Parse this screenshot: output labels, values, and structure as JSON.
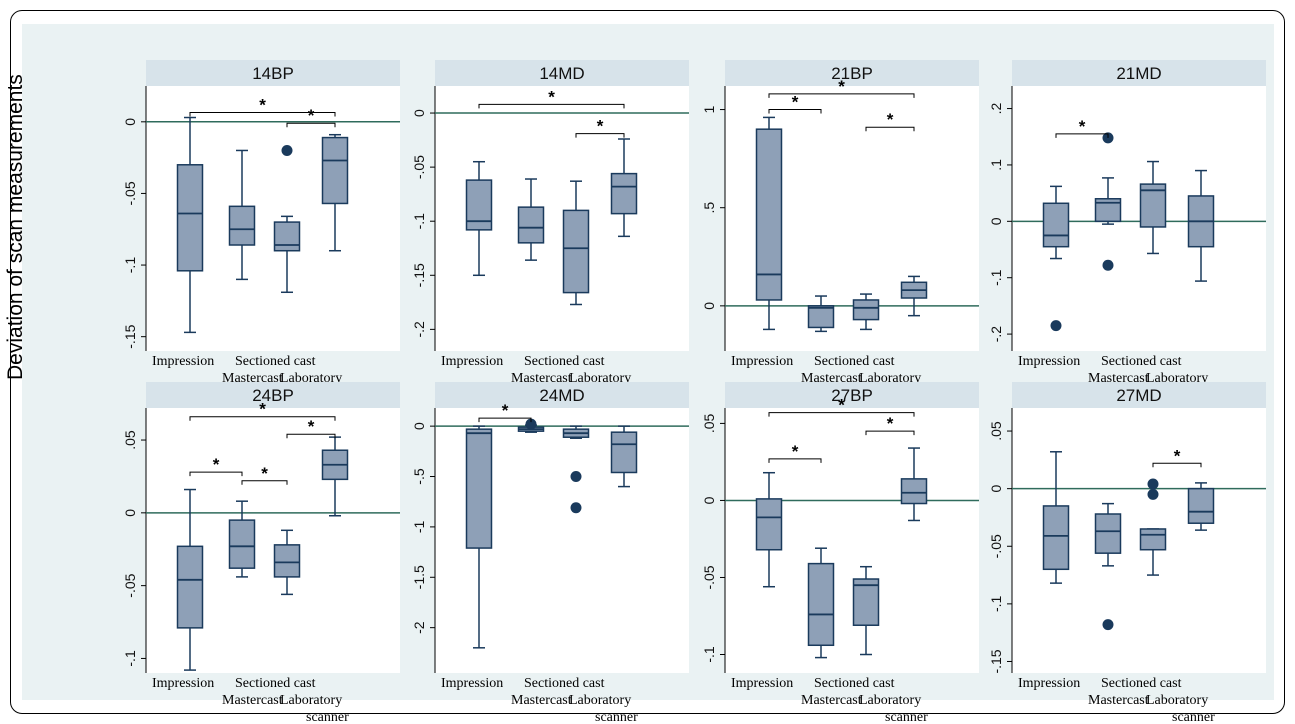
{
  "page": {
    "ylabel": "Deviation of scan measurements"
  },
  "colors": {
    "box_fill": "#8ea0b7",
    "box_stroke": "#1a3a5c",
    "ref_line": "#2f6b5c",
    "header_bg": "#d7e3ea",
    "plot_bg": "#ffffff",
    "outer_bg": "#eaf2f3"
  },
  "x_categories": [
    "Impression",
    "Mastercast",
    "Sectioned cast",
    "Laboratory scanner"
  ],
  "chart_data": [
    {
      "type": "box",
      "title": "14BP",
      "ylim": [
        -0.16,
        0.025
      ],
      "ticks": [
        0,
        -0.05,
        -0.1,
        -0.15
      ],
      "tick_labels": [
        "0",
        "-.05",
        "-.1",
        "-.15"
      ],
      "ref_line": 0,
      "boxes": [
        {
          "category": "Impression",
          "whisker_low": -0.147,
          "q1": -0.104,
          "median": -0.064,
          "q3": -0.03,
          "whisker_high": 0.003,
          "outliers": []
        },
        {
          "category": "Mastercast",
          "whisker_low": -0.11,
          "q1": -0.086,
          "median": -0.075,
          "q3": -0.059,
          "whisker_high": -0.02,
          "outliers": []
        },
        {
          "category": "Sectioned cast",
          "whisker_low": -0.119,
          "q1": -0.09,
          "median": -0.086,
          "q3": -0.07,
          "whisker_high": -0.066,
          "outliers": [
            -0.02
          ]
        },
        {
          "category": "Laboratory scanner",
          "whisker_low": -0.09,
          "q1": -0.057,
          "median": -0.027,
          "q3": -0.011,
          "whisker_high": -0.009,
          "outliers": []
        }
      ],
      "significance": [
        {
          "from": 0,
          "to": 3,
          "label": "*",
          "level": 0.0065
        },
        {
          "from": 2,
          "to": 3,
          "label": "*",
          "level": -0.001
        }
      ]
    },
    {
      "type": "box",
      "title": "14MD",
      "ylim": [
        -0.22,
        0.025
      ],
      "ticks": [
        0,
        -0.05,
        -0.1,
        -0.15,
        -0.2
      ],
      "tick_labels": [
        "0",
        "-.05",
        "-.1",
        "-.15",
        "-.2"
      ],
      "ref_line": 0,
      "boxes": [
        {
          "category": "Impression",
          "whisker_low": -0.15,
          "q1": -0.108,
          "median": -0.1,
          "q3": -0.062,
          "whisker_high": -0.045,
          "outliers": []
        },
        {
          "category": "Mastercast",
          "whisker_low": -0.136,
          "q1": -0.12,
          "median": -0.106,
          "q3": -0.087,
          "whisker_high": -0.061,
          "outliers": []
        },
        {
          "category": "Sectioned cast",
          "whisker_low": -0.177,
          "q1": -0.166,
          "median": -0.125,
          "q3": -0.09,
          "whisker_high": -0.063,
          "outliers": []
        },
        {
          "category": "Laboratory scanner",
          "whisker_low": -0.114,
          "q1": -0.093,
          "median": -0.068,
          "q3": -0.056,
          "whisker_high": -0.024,
          "outliers": []
        }
      ],
      "significance": [
        {
          "from": 0,
          "to": 3,
          "label": "*",
          "level": 0.008
        },
        {
          "from": 2,
          "to": 3,
          "label": "*",
          "level": -0.019
        }
      ]
    },
    {
      "type": "box",
      "title": "21BP",
      "ylim": [
        -0.23,
        1.12
      ],
      "ticks": [
        1,
        0.5,
        0
      ],
      "tick_labels": [
        "1",
        ".5",
        "0"
      ],
      "ref_line": 0,
      "boxes": [
        {
          "category": "Impression",
          "whisker_low": -0.12,
          "q1": 0.03,
          "median": 0.16,
          "q3": 0.9,
          "whisker_high": 0.96,
          "outliers": []
        },
        {
          "category": "Mastercast",
          "whisker_low": -0.13,
          "q1": -0.11,
          "median": -0.01,
          "q3": 0.0,
          "whisker_high": 0.05,
          "outliers": []
        },
        {
          "category": "Sectioned cast",
          "whisker_low": -0.12,
          "q1": -0.07,
          "median": -0.01,
          "q3": 0.03,
          "whisker_high": 0.06,
          "outliers": []
        },
        {
          "category": "Laboratory scanner",
          "whisker_low": -0.05,
          "q1": 0.04,
          "median": 0.08,
          "q3": 0.12,
          "whisker_high": 0.15,
          "outliers": []
        }
      ],
      "significance": [
        {
          "from": 0,
          "to": 3,
          "label": "*",
          "level": 1.08
        },
        {
          "from": 0,
          "to": 1,
          "label": "*",
          "level": 1.0
        },
        {
          "from": 2,
          "to": 3,
          "label": "*",
          "level": 0.91
        }
      ]
    },
    {
      "type": "box",
      "title": "21MD",
      "ylim": [
        -0.23,
        0.24
      ],
      "ticks": [
        0.2,
        0.1,
        0,
        -0.1,
        -0.2
      ],
      "tick_labels": [
        ".2",
        ".1",
        "0",
        "-.1",
        "-.2"
      ],
      "ref_line": 0,
      "boxes": [
        {
          "category": "Impression",
          "whisker_low": -0.066,
          "q1": -0.045,
          "median": -0.025,
          "q3": 0.032,
          "whisker_high": 0.062,
          "outliers": [
            -0.185
          ]
        },
        {
          "category": "Mastercast",
          "whisker_low": -0.005,
          "q1": 0.0,
          "median": 0.033,
          "q3": 0.04,
          "whisker_high": 0.077,
          "outliers": [
            0.148,
            -0.078
          ]
        },
        {
          "category": "Sectioned cast",
          "whisker_low": -0.057,
          "q1": -0.01,
          "median": 0.055,
          "q3": 0.066,
          "whisker_high": 0.106,
          "outliers": []
        },
        {
          "category": "Laboratory scanner",
          "whisker_low": -0.106,
          "q1": -0.045,
          "median": 0.0,
          "q3": 0.045,
          "whisker_high": 0.09,
          "outliers": []
        }
      ],
      "significance": [
        {
          "from": 0,
          "to": 1,
          "label": "*",
          "level": 0.155
        }
      ]
    },
    {
      "type": "box",
      "title": "24BP",
      "ylim": [
        -0.11,
        0.072
      ],
      "ticks": [
        0.05,
        0,
        -0.05,
        -0.1
      ],
      "tick_labels": [
        ".05",
        "0",
        "-.05",
        "-.1"
      ],
      "ref_line": 0,
      "boxes": [
        {
          "category": "Impression",
          "whisker_low": -0.108,
          "q1": -0.079,
          "median": -0.046,
          "q3": -0.023,
          "whisker_high": 0.016,
          "outliers": []
        },
        {
          "category": "Mastercast",
          "whisker_low": -0.044,
          "q1": -0.038,
          "median": -0.023,
          "q3": -0.005,
          "whisker_high": 0.008,
          "outliers": []
        },
        {
          "category": "Sectioned cast",
          "whisker_low": -0.056,
          "q1": -0.044,
          "median": -0.034,
          "q3": -0.022,
          "whisker_high": -0.012,
          "outliers": []
        },
        {
          "category": "Laboratory scanner",
          "whisker_low": -0.002,
          "q1": 0.023,
          "median": 0.033,
          "q3": 0.043,
          "whisker_high": 0.052,
          "outliers": []
        }
      ],
      "significance": [
        {
          "from": 0,
          "to": 3,
          "label": "*",
          "level": 0.066
        },
        {
          "from": 2,
          "to": 3,
          "label": "*",
          "level": 0.054
        },
        {
          "from": 0,
          "to": 1,
          "label": "*",
          "level": 0.028
        },
        {
          "from": 1,
          "to": 2,
          "label": "*",
          "level": 0.022
        }
      ]
    },
    {
      "type": "box",
      "title": "24MD",
      "ylim": [
        -2.45,
        0.18
      ],
      "ticks": [
        0,
        -0.5,
        -1,
        -1.5,
        -2
      ],
      "tick_labels": [
        "0",
        "-.5",
        "-1",
        "-1.5",
        "-2"
      ],
      "ref_line": 0,
      "boxes": [
        {
          "category": "Impression",
          "whisker_low": -2.2,
          "q1": -1.21,
          "median": -0.07,
          "q3": -0.03,
          "whisker_high": 0.0,
          "outliers": []
        },
        {
          "category": "Mastercast",
          "whisker_low": -0.06,
          "q1": -0.05,
          "median": -0.03,
          "q3": -0.01,
          "whisker_high": 0.01,
          "outliers": [
            0.02
          ]
        },
        {
          "category": "Sectioned cast",
          "whisker_low": -0.12,
          "q1": -0.11,
          "median": -0.07,
          "q3": -0.03,
          "whisker_high": 0.0,
          "outliers": [
            -0.5,
            -0.81
          ]
        },
        {
          "category": "Laboratory scanner",
          "whisker_low": -0.6,
          "q1": -0.46,
          "median": -0.18,
          "q3": -0.06,
          "whisker_high": 0.0,
          "outliers": []
        }
      ],
      "significance": [
        {
          "from": 0,
          "to": 1,
          "label": "*",
          "level": 0.08
        }
      ]
    },
    {
      "type": "box",
      "title": "27BP",
      "ylim": [
        -0.112,
        0.06
      ],
      "ticks": [
        0.05,
        0,
        -0.05,
        -0.1
      ],
      "tick_labels": [
        ".05",
        "0",
        "-.05",
        "-.1"
      ],
      "ref_line": 0,
      "boxes": [
        {
          "category": "Impression",
          "whisker_low": -0.056,
          "q1": -0.032,
          "median": -0.011,
          "q3": 0.001,
          "whisker_high": 0.018,
          "outliers": []
        },
        {
          "category": "Mastercast",
          "whisker_low": -0.102,
          "q1": -0.094,
          "median": -0.074,
          "q3": -0.041,
          "whisker_high": -0.031,
          "outliers": []
        },
        {
          "category": "Sectioned cast",
          "whisker_low": -0.1,
          "q1": -0.081,
          "median": -0.055,
          "q3": -0.051,
          "whisker_high": -0.043,
          "outliers": []
        },
        {
          "category": "Laboratory scanner",
          "whisker_low": -0.013,
          "q1": -0.002,
          "median": 0.005,
          "q3": 0.014,
          "whisker_high": 0.034,
          "outliers": []
        }
      ],
      "significance": [
        {
          "from": 0,
          "to": 3,
          "label": "*",
          "level": 0.057
        },
        {
          "from": 2,
          "to": 3,
          "label": "*",
          "level": 0.045
        },
        {
          "from": 0,
          "to": 1,
          "label": "*",
          "level": 0.027
        }
      ]
    },
    {
      "type": "box",
      "title": "27MD",
      "ylim": [
        -0.16,
        0.07
      ],
      "ticks": [
        0.05,
        0,
        -0.05,
        -0.1,
        -0.15
      ],
      "tick_labels": [
        ".05",
        "0",
        "-.05",
        "-.1",
        "-.15"
      ],
      "ref_line": 0,
      "boxes": [
        {
          "category": "Impression",
          "whisker_low": -0.082,
          "q1": -0.07,
          "median": -0.041,
          "q3": -0.015,
          "whisker_high": 0.032,
          "outliers": []
        },
        {
          "category": "Mastercast",
          "whisker_low": -0.067,
          "q1": -0.056,
          "median": -0.037,
          "q3": -0.022,
          "whisker_high": -0.013,
          "outliers": [
            -0.118
          ]
        },
        {
          "category": "Sectioned cast",
          "whisker_low": -0.075,
          "q1": -0.053,
          "median": -0.04,
          "q3": -0.035,
          "whisker_high": -0.035,
          "outliers": [
            0.004,
            -0.005
          ]
        },
        {
          "category": "Laboratory scanner",
          "whisker_low": -0.036,
          "q1": -0.03,
          "median": -0.02,
          "q3": 0.0,
          "whisker_high": 0.005,
          "outliers": []
        }
      ],
      "significance": [
        {
          "from": 2,
          "to": 3,
          "label": "*",
          "level": 0.022
        }
      ]
    }
  ]
}
